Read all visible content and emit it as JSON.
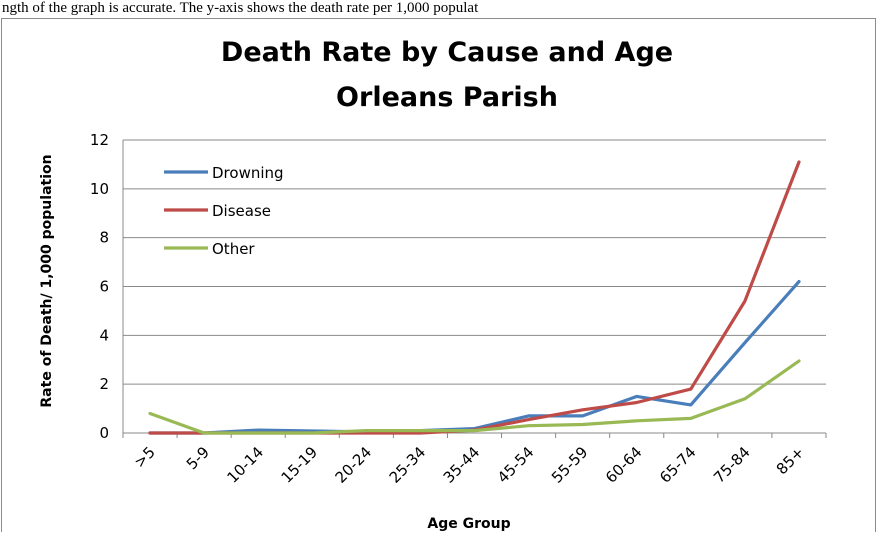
{
  "caption": "ngth of the graph is accurate. The y-axis shows the death rate per 1,000 populat",
  "chart_data": {
    "type": "line",
    "title_lines": [
      "Death Rate by Cause and Age",
      "Orleans Parish"
    ],
    "xlabel": "Age Group",
    "ylabel": "Rate of Death/ 1,000 population",
    "categories": [
      ">5",
      "5-9",
      "10-14",
      "15-19",
      "20-24",
      "25-34",
      "35-44",
      "45-54",
      "55-59",
      "60-64",
      "65-74",
      "75-84",
      "85+"
    ],
    "ylim": [
      0,
      12
    ],
    "yticks": [
      0,
      2,
      4,
      6,
      8,
      10,
      12
    ],
    "grid": true,
    "legend_position": "top-left",
    "series": [
      {
        "name": "Drowning",
        "color": "#4a7ebb",
        "values": [
          0.0,
          0.0,
          0.12,
          0.08,
          0.05,
          0.1,
          0.18,
          0.7,
          0.7,
          1.5,
          1.15,
          3.7,
          6.2
        ]
      },
      {
        "name": "Disease",
        "color": "#be4b48",
        "values": [
          0.0,
          0.0,
          0.0,
          0.0,
          0.0,
          0.0,
          0.12,
          0.55,
          0.95,
          1.25,
          1.8,
          5.4,
          11.1
        ]
      },
      {
        "name": "Other",
        "color": "#98b954",
        "values": [
          0.8,
          0.0,
          0.0,
          0.0,
          0.1,
          0.1,
          0.1,
          0.3,
          0.35,
          0.5,
          0.6,
          1.4,
          2.95
        ]
      }
    ]
  }
}
